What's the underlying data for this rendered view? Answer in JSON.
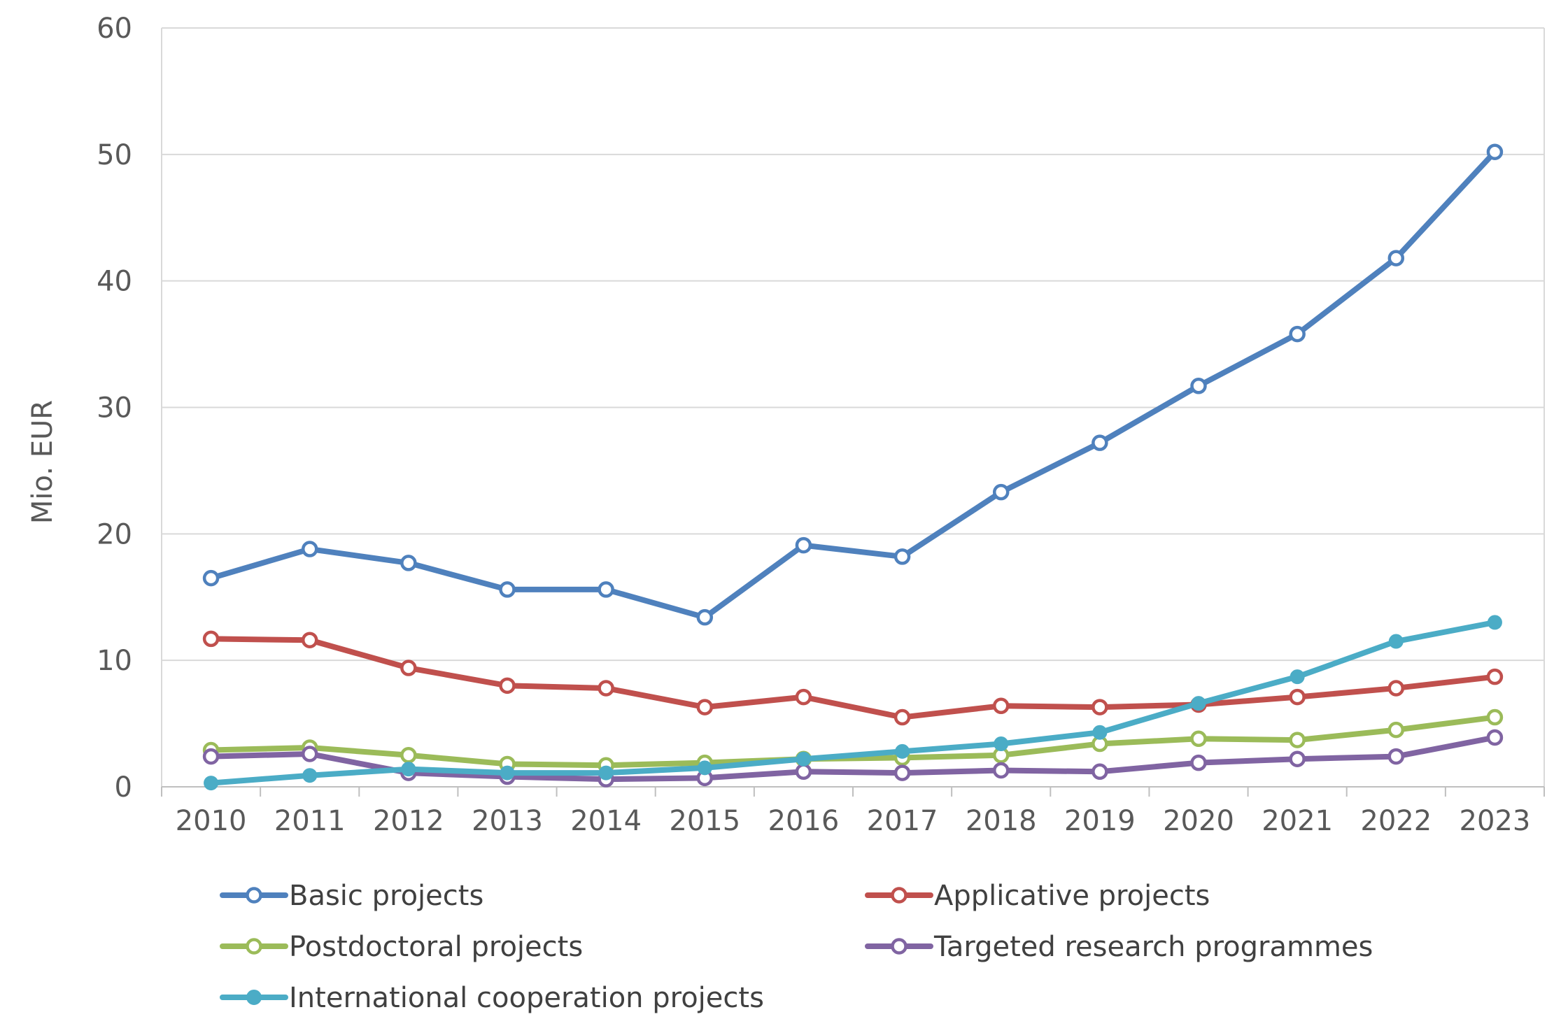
{
  "chart_data": {
    "type": "line",
    "title": "",
    "xlabel": "",
    "ylabel": "Mio. EUR",
    "categories": [
      "2010",
      "2011",
      "2012",
      "2013",
      "2014",
      "2015",
      "2016",
      "2017",
      "2018",
      "2019",
      "2020",
      "2021",
      "2022",
      "2023"
    ],
    "ylim": [
      0,
      60
    ],
    "yticks": [
      0,
      10,
      20,
      30,
      40,
      50,
      60
    ],
    "grid": true,
    "legend": {
      "position": "bottom",
      "columns": 2
    },
    "series": [
      {
        "name": "Basic projects",
        "color": "#4F81BD",
        "marker": "hollow-circle",
        "values": [
          16.5,
          18.8,
          17.7,
          15.6,
          15.6,
          13.4,
          19.1,
          18.2,
          23.3,
          27.2,
          31.7,
          35.8,
          41.8,
          50.2
        ]
      },
      {
        "name": "Applicative projects",
        "color": "#C0504D",
        "marker": "hollow-circle",
        "values": [
          11.7,
          11.6,
          9.4,
          8.0,
          7.8,
          6.3,
          7.1,
          5.5,
          6.4,
          6.3,
          6.5,
          7.1,
          7.8,
          8.7
        ]
      },
      {
        "name": "Postdoctoral projects",
        "color": "#9BBB59",
        "marker": "hollow-circle",
        "values": [
          2.9,
          3.1,
          2.5,
          1.8,
          1.7,
          1.9,
          2.2,
          2.3,
          2.5,
          3.4,
          3.8,
          3.7,
          4.5,
          5.5
        ]
      },
      {
        "name": "Targeted research programmes",
        "color": "#8064A2",
        "marker": "hollow-circle",
        "values": [
          2.4,
          2.6,
          1.1,
          0.8,
          0.6,
          0.7,
          1.2,
          1.1,
          1.3,
          1.2,
          1.9,
          2.2,
          2.4,
          3.9
        ]
      },
      {
        "name": "International cooperation projects",
        "color": "#4BACC6",
        "marker": "filled-circle",
        "values": [
          0.3,
          0.9,
          1.4,
          1.1,
          1.1,
          1.5,
          2.2,
          2.8,
          3.4,
          4.3,
          6.6,
          8.7,
          11.5,
          13.0
        ]
      }
    ]
  }
}
